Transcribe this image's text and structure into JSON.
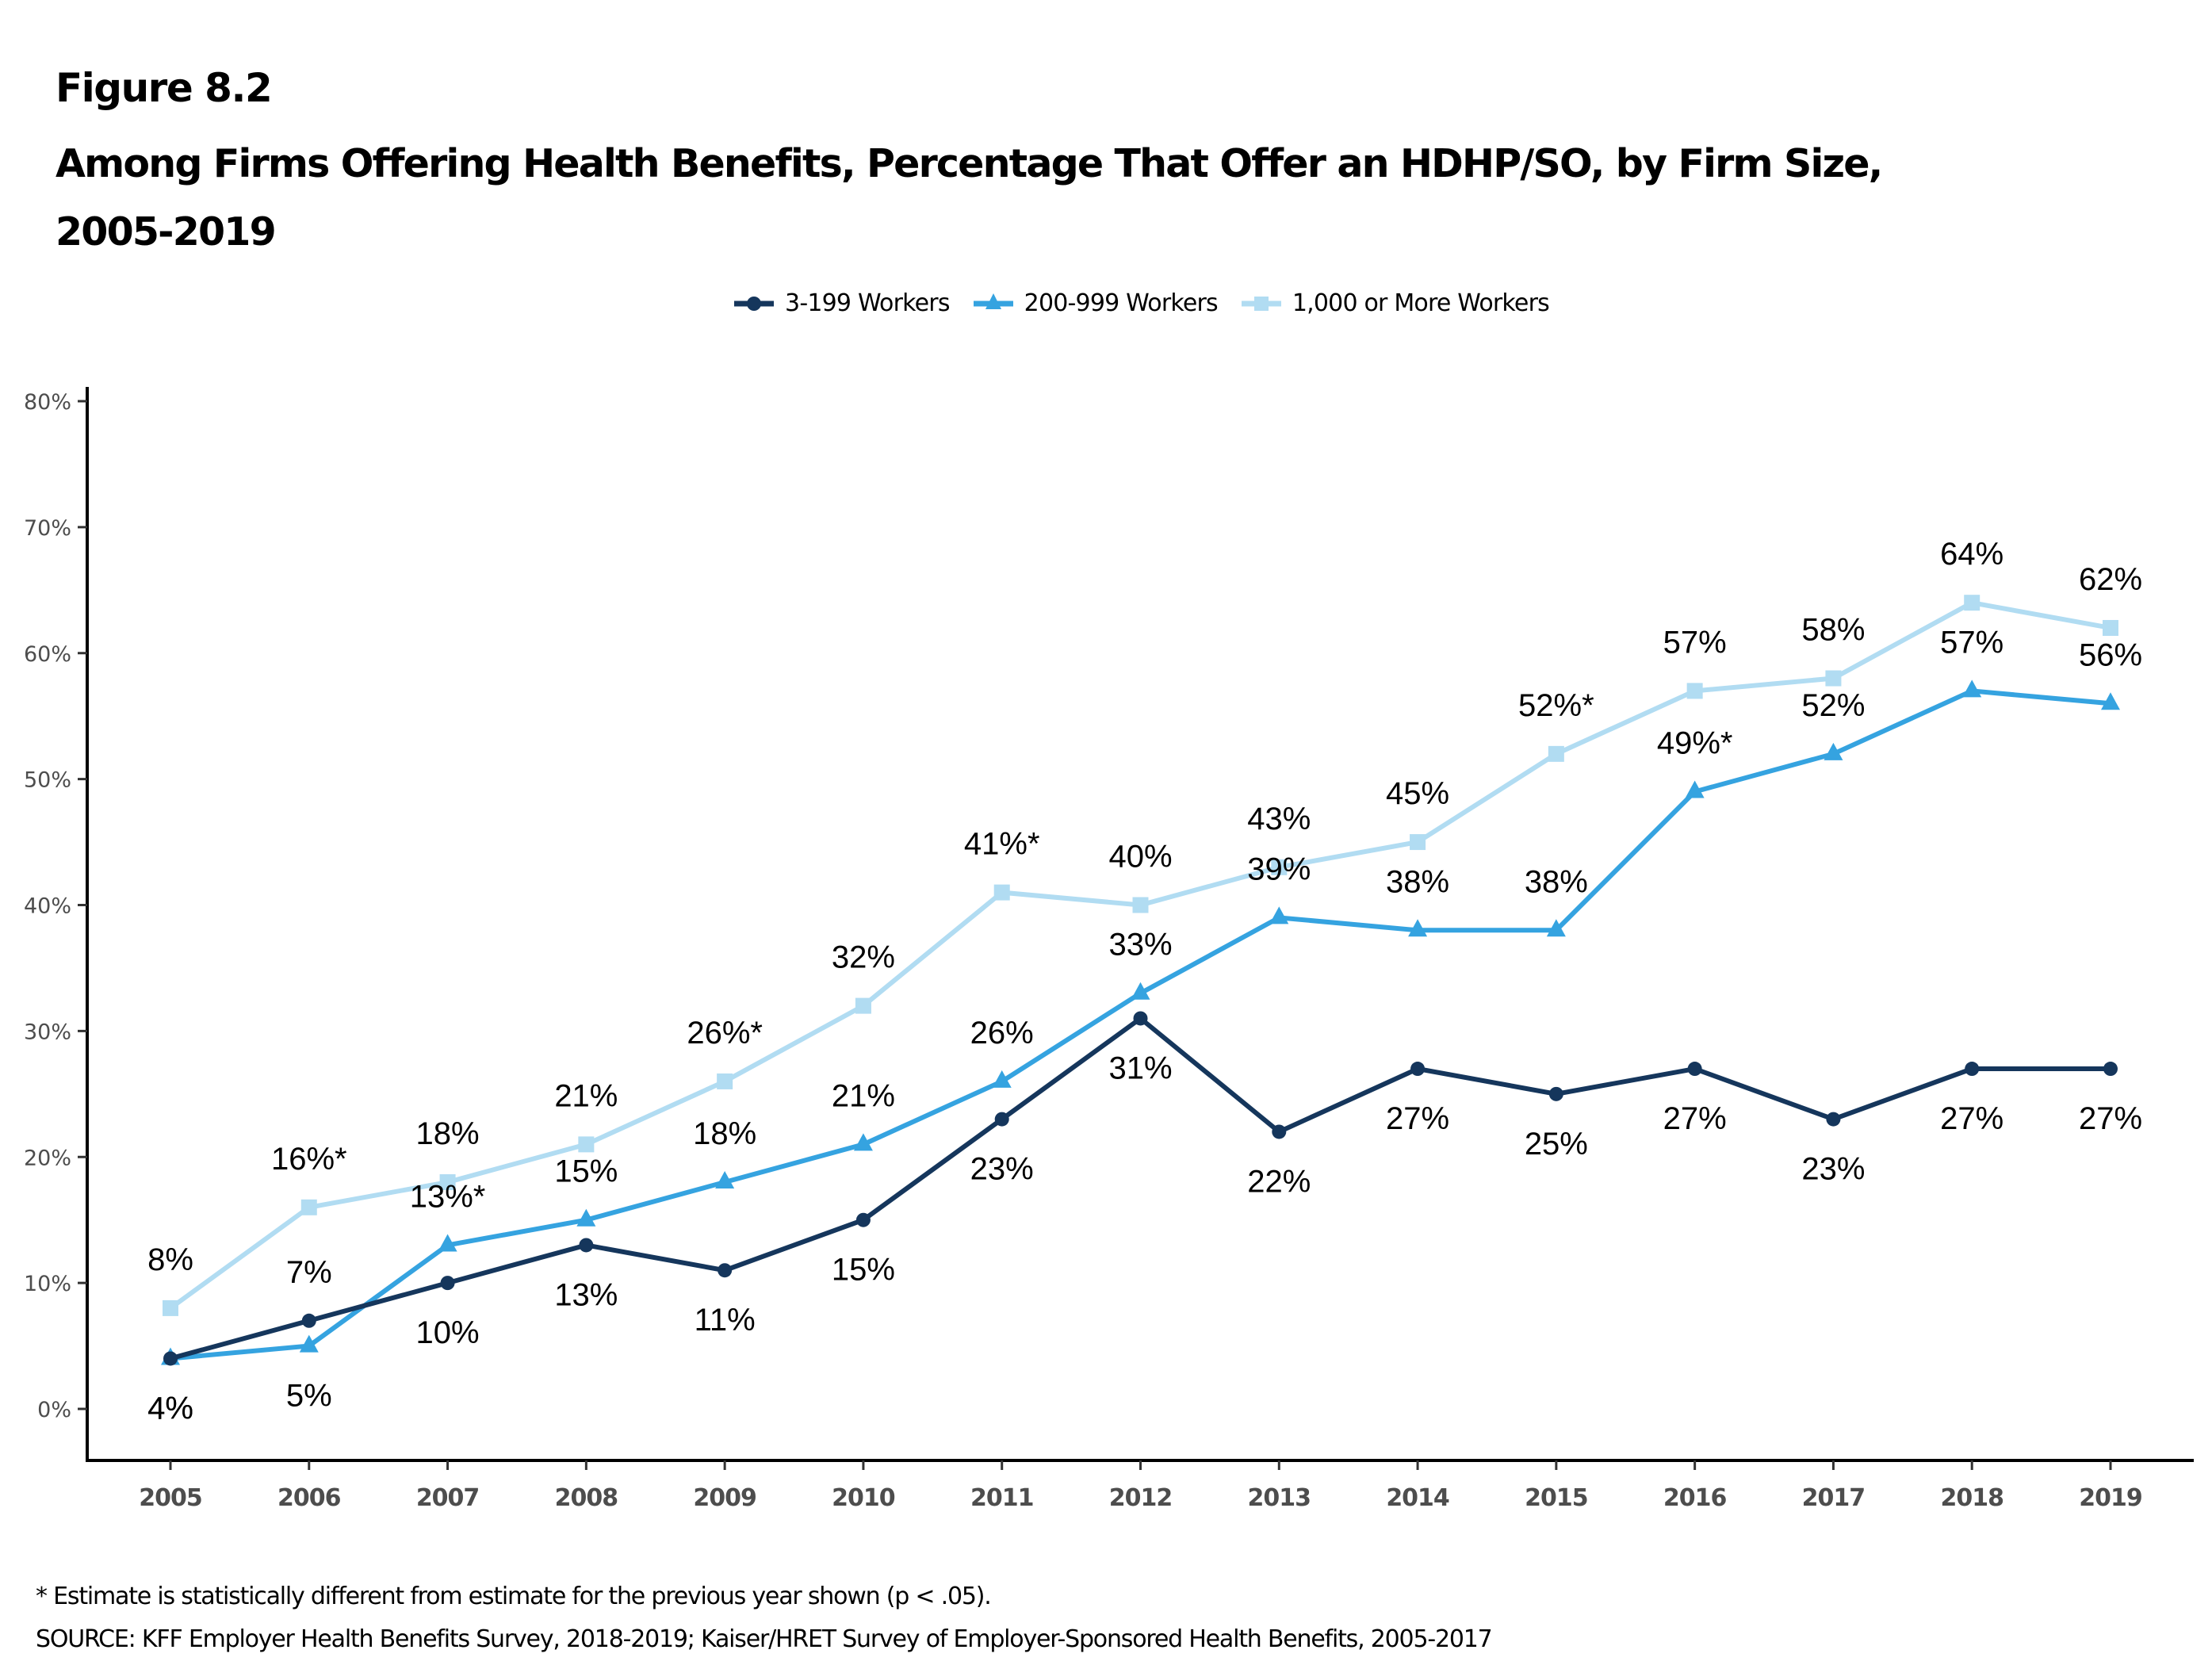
{
  "figure_label": "Figure 8.2",
  "title_line1": "Among Firms Offering Health Benefits, Percentage That Offer an HDHP/SO, by Firm Size,",
  "title_line2": "2005-2019",
  "footnote": "* Estimate is statistically different from estimate for the previous year shown (p < .05).",
  "source": "SOURCE: KFF Employer Health Benefits Survey, 2018-2019; Kaiser/HRET Survey of Employer-Sponsored Health Benefits, 2005-2017",
  "chart_data": {
    "type": "line",
    "title": "Among Firms Offering Health Benefits, Percentage That Offer an HDHP/SO, by Firm Size, 2005-2019",
    "xlabel": "",
    "ylabel": "",
    "x": [
      "2005",
      "2006",
      "2007",
      "2008",
      "2009",
      "2010",
      "2011",
      "2012",
      "2013",
      "2014",
      "2015",
      "2016",
      "2017",
      "2018",
      "2019"
    ],
    "ylim": [
      0,
      80
    ],
    "yticks": [
      0,
      10,
      20,
      30,
      40,
      50,
      60,
      70,
      80
    ],
    "ytick_labels": [
      "0%",
      "10%",
      "20%",
      "30%",
      "40%",
      "50%",
      "60%",
      "70%",
      "80%"
    ],
    "grid": false,
    "legend_position": "top-center",
    "series": [
      {
        "name": "3-199 Workers",
        "color": "#15365c",
        "marker": "circle",
        "label_position": "below",
        "values": [
          4,
          7,
          10,
          13,
          11,
          15,
          23,
          31,
          22,
          27,
          25,
          27,
          23,
          27,
          27
        ],
        "labels": [
          "4%",
          "7%",
          "10%",
          "13%",
          "11%",
          "15%",
          "23%",
          "31%",
          "22%",
          "27%",
          "25%",
          "27%",
          "23%",
          "27%",
          "27%"
        ],
        "label_above": [
          false,
          true,
          false,
          false,
          false,
          false,
          false,
          false,
          false,
          false,
          false,
          false,
          false,
          false,
          false
        ]
      },
      {
        "name": "200-999 Workers",
        "color": "#35a3e0",
        "marker": "triangle",
        "label_position": "above",
        "values": [
          4,
          5,
          13,
          15,
          18,
          21,
          26,
          33,
          39,
          38,
          38,
          49,
          52,
          57,
          56
        ],
        "labels": [
          "4%",
          "5%",
          "13%*",
          "15%",
          "18%",
          "21%",
          "26%",
          "33%",
          "39%",
          "38%",
          "38%",
          "49%*",
          "52%",
          "57%",
          "56%"
        ],
        "label_above": [
          false,
          false,
          true,
          true,
          true,
          true,
          true,
          true,
          true,
          true,
          true,
          true,
          true,
          true,
          true
        ]
      },
      {
        "name": "1,000 or More Workers",
        "color": "#b1dcf2",
        "marker": "square",
        "label_position": "above",
        "values": [
          8,
          16,
          18,
          21,
          26,
          32,
          41,
          40,
          43,
          45,
          52,
          57,
          58,
          64,
          62
        ],
        "labels": [
          "8%",
          "16%*",
          "18%",
          "21%",
          "26%*",
          "32%",
          "41%*",
          "40%",
          "43%",
          "45%",
          "52%*",
          "57%",
          "58%",
          "64%",
          "62%"
        ],
        "label_above": [
          true,
          true,
          true,
          true,
          true,
          true,
          true,
          true,
          true,
          true,
          true,
          true,
          true,
          true,
          true
        ]
      }
    ]
  }
}
